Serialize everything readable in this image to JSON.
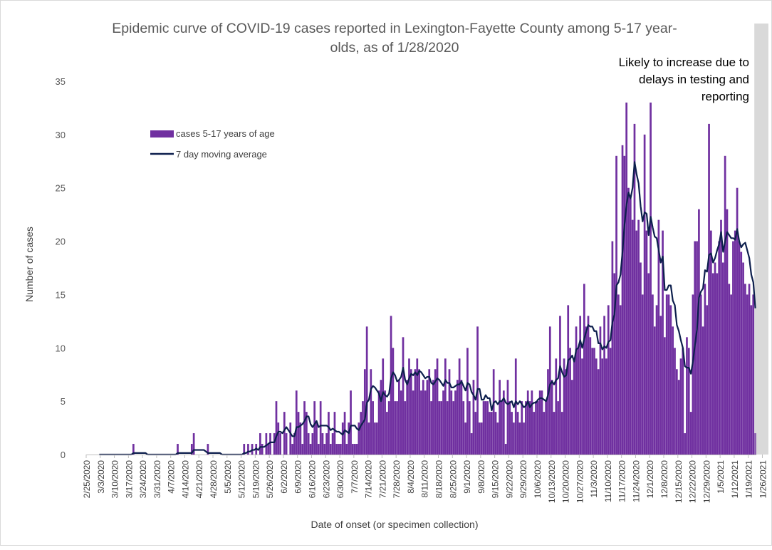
{
  "chart_data": {
    "type": "bar",
    "title": "Epidemic curve of COVID-19 cases reported in Lexington-Fayette County among 5-17 year-olds, as of 1/28/2020",
    "title_lines": [
      "Epidemic curve of COVID-19 cases reported in Lexington-Fayette County among 5-17 year-",
      "olds, as of 1/28/2020"
    ],
    "xlabel": "Date of onset (or specimen collection)",
    "ylabel": "Number of cases",
    "ylim": [
      0,
      35
    ],
    "y_ticks": [
      0,
      5,
      10,
      15,
      20,
      25,
      30,
      35
    ],
    "grid": false,
    "legend_position": "upper-left (inside plot)",
    "start_date": "2/25/2020",
    "end_date": "1/28/2021",
    "x_tick_labels": [
      "2/25/2020",
      "3/3/2020",
      "3/10/2020",
      "3/17/2020",
      "3/24/2020",
      "3/31/2020",
      "4/7/2020",
      "4/14/2020",
      "4/21/2020",
      "4/28/2020",
      "5/5/2020",
      "5/12/2020",
      "5/19/2020",
      "5/26/2020",
      "6/2/2020",
      "6/9/2020",
      "6/16/2020",
      "6/23/2020",
      "6/30/2020",
      "7/7/2020",
      "7/14/2020",
      "7/21/2020",
      "7/28/2020",
      "8/4/2020",
      "8/11/2020",
      "8/18/2020",
      "8/25/2020",
      "9/1/2020",
      "9/8/2020",
      "9/15/2020",
      "9/22/2020",
      "9/29/2020",
      "10/6/2020",
      "10/13/2020",
      "10/20/2020",
      "10/27/2020",
      "11/3/2020",
      "11/10/2020",
      "11/17/2020",
      "11/24/2020",
      "12/1/2020",
      "12/8/2020",
      "12/15/2020",
      "12/22/2020",
      "12/29/2020",
      "1/5/2021",
      "1/12/2021",
      "1/19/2021",
      "1/26/2021"
    ],
    "series": [
      {
        "name": "cases 5-17 years of age",
        "type": "bar",
        "color": "#7030a0"
      },
      {
        "name": "7 day moving average",
        "type": "line",
        "color": "#0d1f4d"
      }
    ],
    "weekly_daily_cases": [
      [
        0,
        0,
        0,
        0,
        0,
        0,
        0
      ],
      [
        0,
        0,
        0,
        0,
        0,
        0,
        0
      ],
      [
        0,
        0,
        0,
        0,
        0,
        0,
        0
      ],
      [
        0,
        0,
        1,
        0,
        0,
        0,
        0
      ],
      [
        0,
        0,
        0,
        0,
        0,
        0,
        0
      ],
      [
        0,
        0,
        0,
        0,
        0,
        0,
        0
      ],
      [
        0,
        0,
        0,
        1,
        0,
        0,
        0
      ],
      [
        0,
        0,
        0,
        1,
        2,
        0,
        0
      ],
      [
        0,
        0,
        0,
        0,
        1,
        0,
        0
      ],
      [
        0,
        0,
        0,
        0,
        0,
        0,
        0
      ],
      [
        0,
        0,
        0,
        0,
        0,
        0,
        0
      ],
      [
        0,
        1,
        0,
        1,
        0,
        1,
        0
      ],
      [
        1,
        0,
        2,
        1,
        0,
        2,
        1
      ],
      [
        2,
        0,
        2,
        5,
        3,
        2,
        0
      ],
      [
        4,
        2,
        0,
        3,
        1,
        2,
        6
      ],
      [
        4,
        3,
        1,
        5,
        4,
        2,
        1
      ],
      [
        2,
        5,
        3,
        1,
        5,
        2,
        1
      ],
      [
        2,
        4,
        1,
        2,
        4,
        1,
        1
      ],
      [
        1,
        3,
        4,
        1,
        3,
        6,
        1
      ],
      [
        1,
        1,
        3,
        4,
        5,
        8,
        12
      ],
      [
        3,
        8,
        5,
        3,
        3,
        6,
        7
      ],
      [
        9,
        6,
        4,
        5,
        13,
        10,
        5
      ],
      [
        5,
        7,
        6,
        11,
        5,
        7,
        9
      ],
      [
        8,
        6,
        8,
        9,
        8,
        6,
        7
      ],
      [
        6,
        7,
        8,
        5,
        7,
        8,
        9
      ],
      [
        5,
        5,
        6,
        9,
        5,
        8,
        6
      ],
      [
        5,
        6,
        7,
        9,
        7,
        5,
        3
      ],
      [
        10,
        5,
        2,
        7,
        4,
        12,
        3
      ],
      [
        3,
        5,
        5,
        5,
        4,
        4,
        8
      ],
      [
        4,
        3,
        7,
        5,
        6,
        1,
        7
      ],
      [
        5,
        4,
        3,
        9,
        4,
        3,
        5
      ],
      [
        3,
        5,
        6,
        5,
        6,
        4,
        5
      ],
      [
        5,
        6,
        6,
        4,
        5,
        8,
        12
      ],
      [
        7,
        4,
        9,
        5,
        13,
        4,
        9
      ],
      [
        8,
        14,
        10,
        7,
        9,
        12,
        10
      ],
      [
        13,
        9,
        16,
        12,
        13,
        11,
        10
      ],
      [
        10,
        9,
        8,
        12,
        9,
        13,
        9
      ],
      [
        14,
        10,
        20,
        17,
        28,
        15,
        14
      ],
      [
        29,
        28,
        33,
        25,
        24,
        22,
        31
      ],
      [
        21,
        22,
        18,
        15,
        30,
        21,
        17
      ],
      [
        33,
        15,
        12,
        14,
        22,
        13,
        21
      ],
      [
        11,
        15,
        15,
        14,
        12,
        10,
        8
      ],
      [
        7,
        9,
        10,
        2,
        11,
        10,
        4
      ],
      [
        15,
        20,
        20,
        23,
        15,
        12,
        16
      ],
      [
        14,
        31,
        21,
        17,
        18,
        17,
        20
      ],
      [
        22,
        18,
        28,
        23,
        16,
        15,
        20
      ],
      [
        21,
        25,
        20,
        19,
        18,
        16,
        15
      ],
      [
        16,
        14,
        15,
        2
      ]
    ],
    "moving_average_start_offset": 6,
    "shaded_region": {
      "start_date": "1/22/2021",
      "end_date": "1/28/2021",
      "color": "#d9d9d9"
    },
    "annotation": {
      "lines": [
        "Likely to increase due to",
        "delays in testing and",
        "reporting"
      ]
    }
  }
}
